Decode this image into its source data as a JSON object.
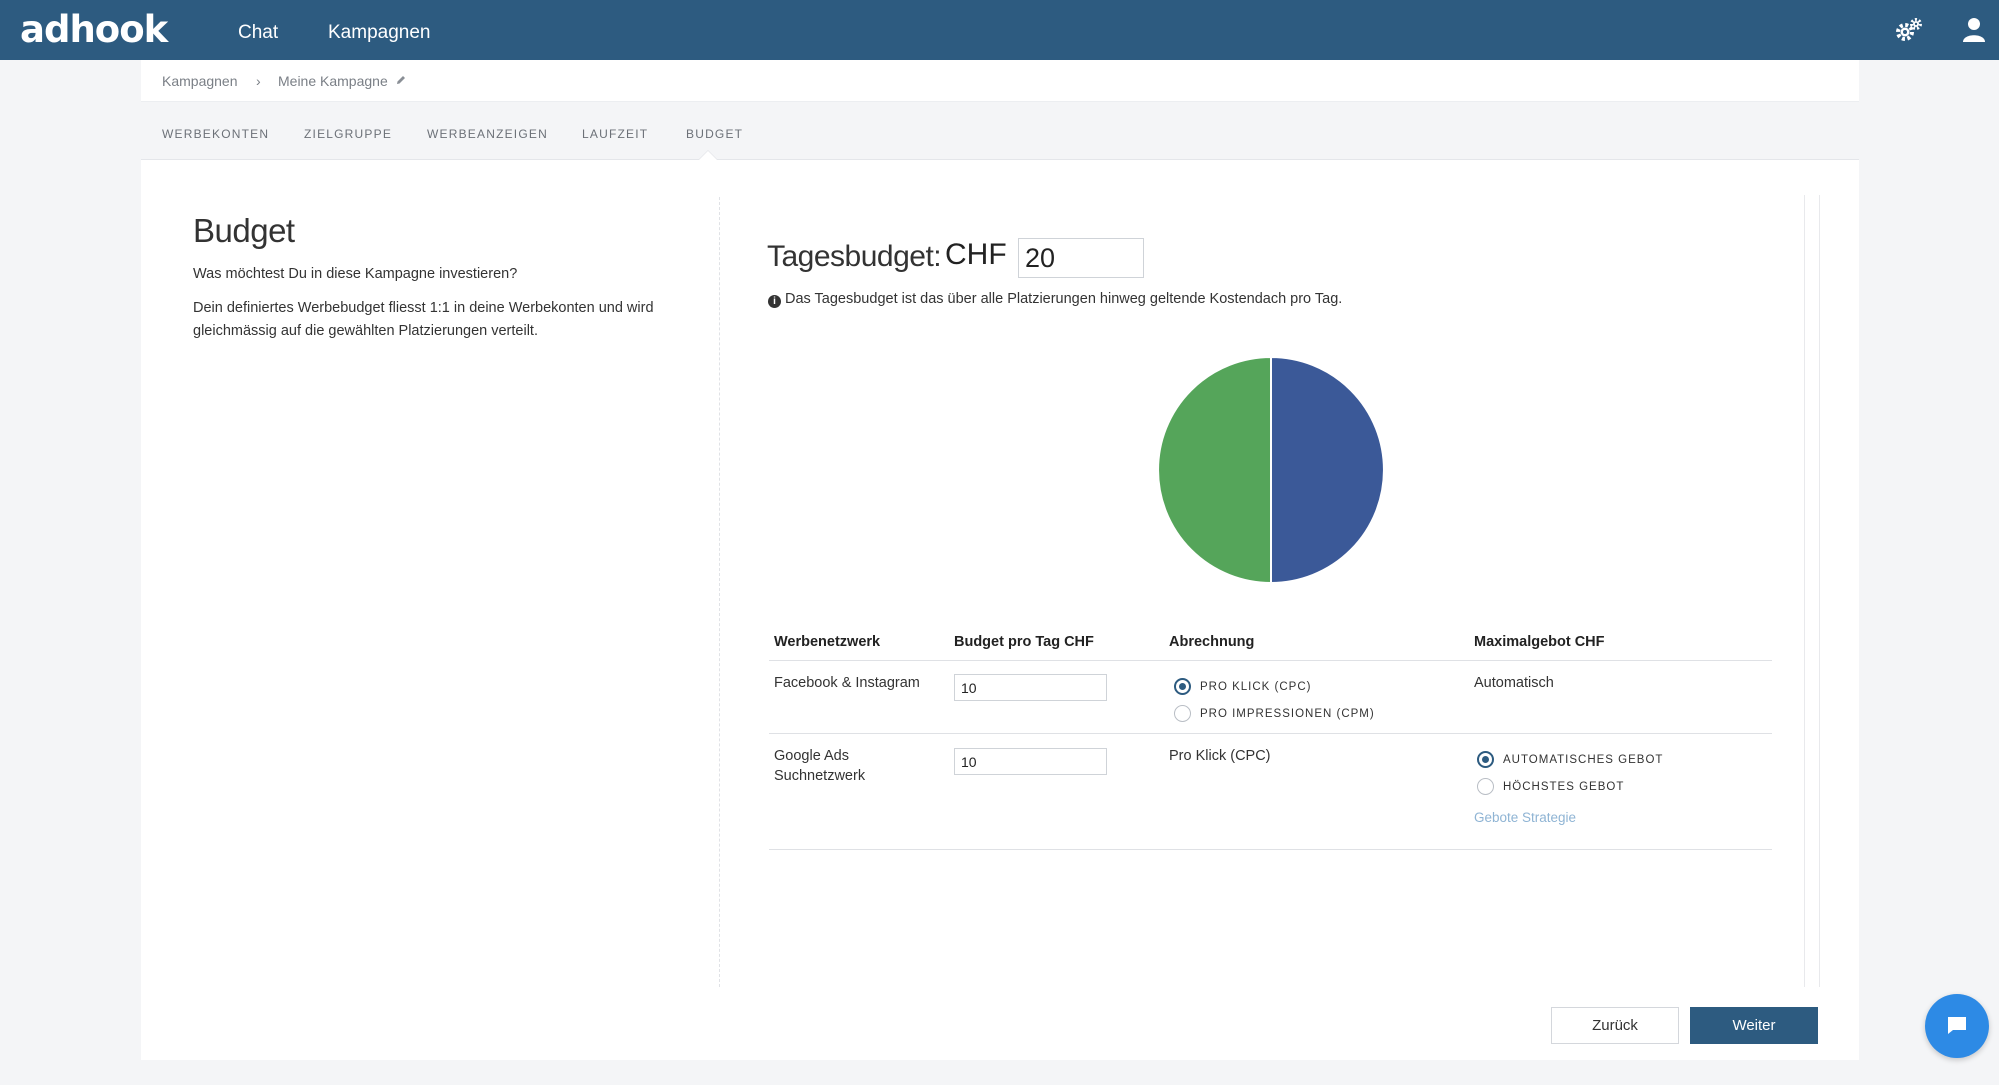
{
  "brand": {
    "logo_text": "adhook",
    "primary": "#2d5b80"
  },
  "topnav": {
    "links": [
      "Chat",
      "Kampagnen"
    ],
    "icons": [
      "gears-icon",
      "user-icon"
    ]
  },
  "breadcrumb": {
    "items": [
      "Kampagnen",
      "Meine Kampagne"
    ],
    "separator": "›"
  },
  "tabs": [
    "WERBEKONTEN",
    "ZIELGRUPPE",
    "WERBEANZEIGEN",
    "LAUFZEIT",
    "BUDGET"
  ],
  "active_tab": "BUDGET",
  "left": {
    "title": "Budget",
    "question": "Was möchtest Du in diese Kampagne investieren?",
    "description": "Dein definiertes Werbebudget fliesst 1:1 in deine Werbekonten und wird gleichmässig auf die gewählten Platzierungen verteilt."
  },
  "budget": {
    "label": "Tagesbudget:",
    "currency": "CHF",
    "value": "20",
    "info": "Das Tagesbudget ist das über alle Platzierungen hinweg geltende Kostendach pro Tag."
  },
  "chart_data": {
    "type": "pie",
    "values": [
      10,
      10
    ],
    "colors": [
      "#3b5998",
      "#55a55a"
    ]
  },
  "table": {
    "headers": [
      "Werbenetzwerk",
      "Budget pro Tag CHF",
      "Abrechnung",
      "Maximalgebot CHF"
    ],
    "rows": [
      {
        "network": "Facebook & Instagram",
        "budget": "10",
        "billing_options": [
          "PRO KLICK (CPC)",
          "PRO IMPRESSIONEN (CPM)"
        ],
        "billing_selected": 0,
        "max_bid": "Automatisch"
      },
      {
        "network_line1": "Google Ads",
        "network_line2": "Suchnetzwerk",
        "budget": "10",
        "billing": "Pro Klick (CPC)",
        "bid_options": [
          "AUTOMATISCHES GEBOT",
          "HÖCHSTES GEBOT"
        ],
        "bid_selected": 0,
        "strategy_link": "Gebote Strategie"
      }
    ]
  },
  "buttons": {
    "back": "Zurück",
    "next": "Weiter"
  }
}
